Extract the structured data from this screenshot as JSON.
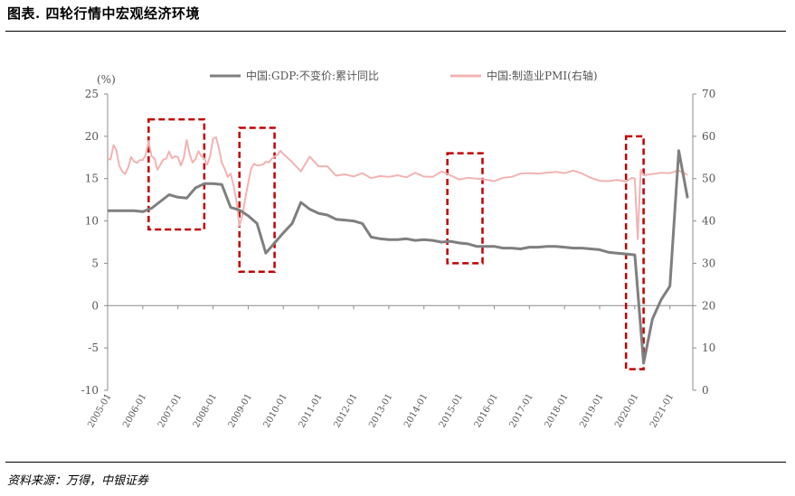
{
  "header": {
    "title": "图表. 四轮行情中宏观经济环境"
  },
  "footer": {
    "source": "资料来源：万得，中银证券"
  },
  "chart_data": {
    "type": "line",
    "unit_label": "(%)",
    "left_axis": {
      "min": -10,
      "max": 25,
      "ticks": [
        -10,
        -5,
        0,
        5,
        10,
        15,
        20,
        25
      ]
    },
    "right_axis": {
      "min": 0,
      "max": 70,
      "ticks": [
        0,
        10,
        20,
        30,
        40,
        50,
        60,
        70
      ]
    },
    "x_tick_labels": [
      "2005-01",
      "2006-01",
      "2007-01",
      "2008-01",
      "2009-01",
      "2010-01",
      "2011-01",
      "2012-01",
      "2013-01",
      "2014-01",
      "2015-01",
      "2016-01",
      "2017-01",
      "2018-01",
      "2019-01",
      "2020-01",
      "2021-01"
    ],
    "series": [
      {
        "name": "中国:GDP:不变价:累计同比",
        "axis": "left",
        "color": "#7f7f7f",
        "x": [
          2005.0,
          2005.75,
          2006.0,
          2006.25,
          2006.5,
          2006.75,
          2007.0,
          2007.25,
          2007.5,
          2007.75,
          2008.0,
          2008.25,
          2008.5,
          2008.75,
          2009.0,
          2009.25,
          2009.5,
          2009.75,
          2010.0,
          2010.25,
          2010.5,
          2010.75,
          2011.0,
          2011.25,
          2011.5,
          2011.75,
          2012.0,
          2012.25,
          2012.5,
          2012.75,
          2013.0,
          2013.25,
          2013.5,
          2013.75,
          2014.0,
          2014.25,
          2014.5,
          2014.75,
          2015.0,
          2015.25,
          2015.5,
          2015.75,
          2016.0,
          2016.25,
          2016.5,
          2016.75,
          2017.0,
          2017.25,
          2017.5,
          2017.75,
          2018.0,
          2018.25,
          2018.5,
          2018.75,
          2019.0,
          2019.25,
          2019.5,
          2019.75,
          2020.0,
          2020.25,
          2020.5,
          2020.75,
          2021.0,
          2021.25,
          2021.5
        ],
        "values": [
          11.2,
          11.2,
          11.1,
          11.5,
          12.3,
          13.1,
          12.8,
          12.7,
          13.9,
          14.4,
          14.4,
          14.3,
          11.6,
          11.3,
          10.6,
          9.7,
          6.2,
          7.4,
          8.6,
          9.7,
          12.2,
          11.4,
          10.9,
          10.7,
          10.2,
          10.1,
          10.0,
          9.7,
          8.1,
          7.9,
          7.8,
          7.8,
          7.9,
          7.7,
          7.8,
          7.7,
          7.5,
          7.6,
          7.4,
          7.3,
          7.0,
          7.0,
          7.0,
          6.8,
          6.8,
          6.7,
          6.9,
          6.9,
          7.0,
          7.0,
          6.9,
          6.8,
          6.8,
          6.7,
          6.6,
          6.3,
          6.2,
          6.1,
          6.0,
          -6.8,
          -1.6,
          0.7,
          2.3,
          18.3,
          12.7
        ]
      },
      {
        "name": "中国:制造业PMI(右轴)",
        "axis": "right",
        "color": "#f2b3b3",
        "x": [
          2005.0,
          2005.083,
          2005.167,
          2005.25,
          2005.333,
          2005.417,
          2005.5,
          2005.583,
          2005.667,
          2005.75,
          2005.833,
          2005.917,
          2006.0,
          2006.083,
          2006.167,
          2006.25,
          2006.333,
          2006.417,
          2006.5,
          2006.583,
          2006.667,
          2006.75,
          2006.833,
          2006.917,
          2007.0,
          2007.083,
          2007.167,
          2007.25,
          2007.333,
          2007.417,
          2007.5,
          2007.583,
          2007.667,
          2007.75,
          2007.833,
          2007.917,
          2008.0,
          2008.083,
          2008.167,
          2008.25,
          2008.333,
          2008.417,
          2008.5,
          2008.583,
          2008.667,
          2008.75,
          2008.833,
          2008.917,
          2009.0,
          2009.083,
          2009.167,
          2009.25,
          2009.333,
          2009.417,
          2009.5,
          2009.583,
          2009.667,
          2009.75,
          2009.833,
          2009.917,
          2010.0,
          2010.25,
          2010.5,
          2010.75,
          2011.0,
          2011.25,
          2011.5,
          2011.75,
          2012.0,
          2012.25,
          2012.5,
          2012.75,
          2013.0,
          2013.25,
          2013.5,
          2013.75,
          2014.0,
          2014.25,
          2014.5,
          2014.75,
          2015.0,
          2015.25,
          2015.5,
          2015.75,
          2016.0,
          2016.25,
          2016.5,
          2016.75,
          2017.0,
          2017.25,
          2017.5,
          2017.75,
          2018.0,
          2018.25,
          2018.5,
          2018.75,
          2019.0,
          2019.25,
          2019.5,
          2019.75,
          2019.917,
          2020.0,
          2020.083,
          2020.167,
          2020.25,
          2020.5,
          2020.75,
          2021.0,
          2021.25,
          2021.5
        ],
        "values": [
          54.7,
          54.5,
          57.9,
          56.7,
          53.0,
          51.7,
          51.1,
          52.6,
          55.1,
          54.1,
          53.7,
          54.4,
          54.4,
          55.6,
          58.9,
          55.3,
          54.8,
          52.1,
          53.3,
          54.5,
          54.7,
          56.4,
          54.8,
          55.3,
          55.1,
          53.1,
          54.9,
          59.1,
          55.8,
          53.8,
          54.6,
          56.5,
          55.3,
          54.7,
          53.3,
          55.4,
          59.4,
          59.8,
          57.1,
          53.7,
          52.3,
          50.4,
          51.2,
          48.4,
          44.6,
          38.8,
          41.2,
          45.3,
          49.0,
          52.4,
          53.5,
          53.1,
          53.2,
          53.3,
          54.0,
          53.8,
          54.7,
          55.2,
          55.6,
          56.6,
          55.8,
          53.9,
          51.7,
          55.2,
          52.9,
          52.9,
          50.7,
          51.0,
          50.5,
          51.3,
          50.1,
          50.6,
          50.4,
          50.8,
          50.3,
          51.4,
          50.5,
          50.4,
          51.7,
          50.8,
          49.8,
          50.2,
          50.0,
          49.8,
          49.4,
          50.2,
          50.4,
          51.2,
          51.3,
          51.2,
          51.4,
          51.6,
          51.3,
          51.9,
          51.2,
          50.2,
          49.5,
          49.4,
          49.7,
          49.3,
          50.2,
          50.0,
          35.7,
          52.0,
          50.8,
          51.1,
          51.4,
          51.3,
          51.9,
          50.9
        ]
      }
    ],
    "highlight_boxes": [
      {
        "x_start": "2006-03",
        "x_end": "2007-10",
        "y_low": 9,
        "y_high": 22
      },
      {
        "x_start": "2008-10",
        "x_end": "2009-10",
        "y_low": 4,
        "y_high": 21
      },
      {
        "x_start": "2014-09",
        "x_end": "2015-09",
        "y_low": 5,
        "y_high": 18
      },
      {
        "x_start": "2019-10",
        "x_end": "2020-04",
        "y_low": -7.5,
        "y_high": 20
      }
    ]
  }
}
